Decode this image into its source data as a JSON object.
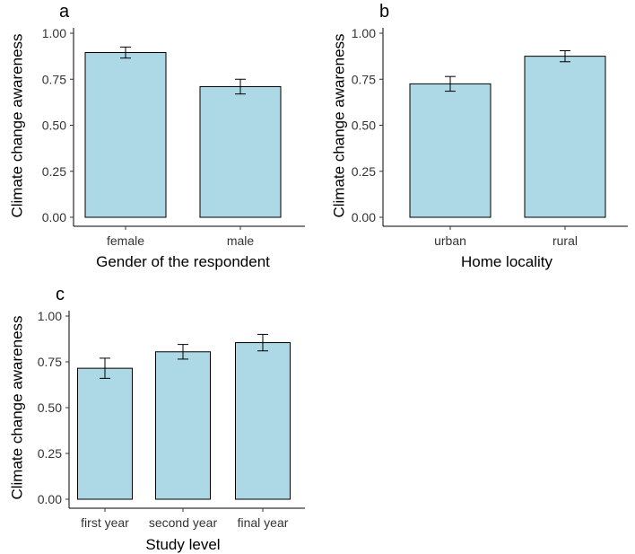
{
  "chart_data": [
    {
      "type": "bar",
      "panel": "a",
      "categories": [
        "female",
        "male"
      ],
      "values": [
        0.895,
        0.71
      ],
      "error_low": [
        0.865,
        0.67
      ],
      "error_high": [
        0.925,
        0.75
      ],
      "xlabel": "Gender of the respondent",
      "ylabel": "Climate change awareness",
      "ylim": [
        0,
        1
      ],
      "yticks": [
        "0.00",
        "0.25",
        "0.50",
        "0.75",
        "1.00"
      ],
      "bar_color": "#add8e6"
    },
    {
      "type": "bar",
      "panel": "b",
      "categories": [
        "urban",
        "rural"
      ],
      "values": [
        0.725,
        0.875
      ],
      "error_low": [
        0.685,
        0.845
      ],
      "error_high": [
        0.765,
        0.905
      ],
      "xlabel": "Home locality",
      "ylabel": "Climate change awareness",
      "ylim": [
        0,
        1
      ],
      "yticks": [
        "0.00",
        "0.25",
        "0.50",
        "0.75",
        "1.00"
      ],
      "bar_color": "#add8e6"
    },
    {
      "type": "bar",
      "panel": "c",
      "categories": [
        "first year",
        "second year",
        "final year"
      ],
      "values": [
        0.715,
        0.805,
        0.855
      ],
      "error_low": [
        0.66,
        0.765,
        0.81
      ],
      "error_high": [
        0.77,
        0.845,
        0.9
      ],
      "xlabel": "Study level",
      "ylabel": "Climate change awareness",
      "ylim": [
        0,
        1
      ],
      "yticks": [
        "0.00",
        "0.25",
        "0.50",
        "0.75",
        "1.00"
      ],
      "bar_color": "#add8e6"
    }
  ]
}
